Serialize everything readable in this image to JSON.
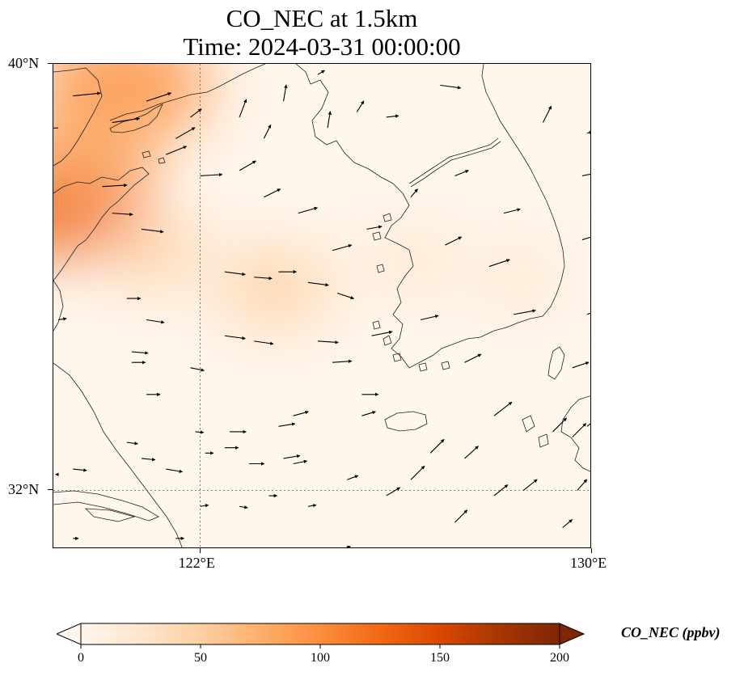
{
  "title": {
    "line1": "CO_NEC at 1.5km",
    "line2": "Time: 2024-03-31 00:00:00"
  },
  "map": {
    "lon_range": [
      119,
      130
    ],
    "lat_range": [
      30.9,
      40
    ],
    "lat_ticks": [
      {
        "value": 40,
        "label": "40°N"
      },
      {
        "value": 32,
        "label": "32°N"
      }
    ],
    "lon_ticks": [
      {
        "value": 122,
        "label": "122°E"
      },
      {
        "value": 130,
        "label": "130°E"
      }
    ],
    "gridlines": [
      {
        "axis": "lon",
        "value": 122
      },
      {
        "axis": "lat",
        "value": 32
      }
    ],
    "field_unit": "ppbv",
    "plumes": [
      {
        "lon": 120.4,
        "lat": 39.6,
        "value": 110
      },
      {
        "lon": 119.1,
        "lat": 37.4,
        "value": 115
      },
      {
        "lon": 119.8,
        "lat": 38.5,
        "value": 75
      },
      {
        "lon": 123.5,
        "lat": 35.8,
        "value": 55
      },
      {
        "lon": 121.0,
        "lat": 36.5,
        "value": 40
      },
      {
        "lon": 126.3,
        "lat": 36.3,
        "value": 35
      },
      {
        "lon": 128.5,
        "lat": 36.0,
        "value": 25
      }
    ]
  },
  "colorbar": {
    "label": "CO_NEC (ppbv)",
    "min": 0,
    "max": 200,
    "ticks": [
      0,
      50,
      100,
      150,
      200
    ],
    "extend": "both",
    "colormap": [
      "#fff5eb",
      "#fee6ce",
      "#fdd0a2",
      "#fdae6b",
      "#fd8d3c",
      "#f16913",
      "#d94801",
      "#a63603",
      "#7f2704"
    ]
  },
  "wind_vectors": [
    {
      "lon": 119.1,
      "lat": 38.8,
      "u": -1,
      "v": -0.05
    },
    {
      "lon": 119.4,
      "lat": 39.4,
      "u": 2,
      "v": 0.2
    },
    {
      "lon": 120.2,
      "lat": 38.9,
      "u": 2,
      "v": 0.3
    },
    {
      "lon": 120.9,
      "lat": 39.3,
      "u": 1.8,
      "v": 0.6
    },
    {
      "lon": 121.8,
      "lat": 39.0,
      "u": 0.8,
      "v": 0.6
    },
    {
      "lon": 120.0,
      "lat": 37.7,
      "u": 1.8,
      "v": 0.1
    },
    {
      "lon": 121.5,
      "lat": 38.6,
      "u": 1.4,
      "v": 0.8
    },
    {
      "lon": 122.0,
      "lat": 37.9,
      "u": 1.6,
      "v": 0.1
    },
    {
      "lon": 120.2,
      "lat": 37.2,
      "u": 1.5,
      "v": -0.1
    },
    {
      "lon": 120.8,
      "lat": 36.9,
      "u": 1.6,
      "v": -0.2
    },
    {
      "lon": 121.3,
      "lat": 38.3,
      "u": 1.5,
      "v": 0.6
    },
    {
      "lon": 122.8,
      "lat": 38.0,
      "u": 1.2,
      "v": 0.7
    },
    {
      "lon": 123.3,
      "lat": 37.5,
      "u": 1.2,
      "v": 0.6
    },
    {
      "lon": 124.0,
      "lat": 37.2,
      "u": 1.4,
      "v": 0.4
    },
    {
      "lon": 124.7,
      "lat": 36.5,
      "u": 1.4,
      "v": 0.4
    },
    {
      "lon": 125.4,
      "lat": 36.9,
      "u": 1.1,
      "v": 0.2
    },
    {
      "lon": 122.5,
      "lat": 36.1,
      "u": 1.5,
      "v": -0.2
    },
    {
      "lon": 123.1,
      "lat": 36.0,
      "u": 1.3,
      "v": -0.1
    },
    {
      "lon": 123.6,
      "lat": 36.1,
      "u": 1.3,
      "v": 0.0
    },
    {
      "lon": 124.2,
      "lat": 35.9,
      "u": 1.5,
      "v": -0.2
    },
    {
      "lon": 124.8,
      "lat": 35.7,
      "u": 1.2,
      "v": -0.4
    },
    {
      "lon": 123.7,
      "lat": 39.3,
      "u": 0.2,
      "v": 1.2
    },
    {
      "lon": 122.8,
      "lat": 39.0,
      "u": 0.5,
      "v": 1.3
    },
    {
      "lon": 123.3,
      "lat": 38.6,
      "u": 0.5,
      "v": 1.0
    },
    {
      "lon": 124.6,
      "lat": 38.8,
      "u": 0.2,
      "v": 1.2
    },
    {
      "lon": 124.4,
      "lat": 39.8,
      "u": 0.5,
      "v": 0.3
    },
    {
      "lon": 125.2,
      "lat": 39.1,
      "u": 0.5,
      "v": 0.8
    },
    {
      "lon": 126.9,
      "lat": 39.6,
      "u": 1.5,
      "v": -0.2
    },
    {
      "lon": 125.8,
      "lat": 39.0,
      "u": 0.9,
      "v": 0.1
    },
    {
      "lon": 126.3,
      "lat": 37.5,
      "u": 0.5,
      "v": 0.6
    },
    {
      "lon": 127.0,
      "lat": 36.6,
      "u": 1.2,
      "v": 0.6
    },
    {
      "lon": 127.2,
      "lat": 37.9,
      "u": 1.0,
      "v": 0.4
    },
    {
      "lon": 128.2,
      "lat": 37.2,
      "u": 1.2,
      "v": 0.3
    },
    {
      "lon": 129.0,
      "lat": 38.9,
      "u": 0.6,
      "v": 1.2
    },
    {
      "lon": 129.9,
      "lat": 38.7,
      "u": 0.4,
      "v": 0.1
    },
    {
      "lon": 129.8,
      "lat": 37.9,
      "u": 1.0,
      "v": 0.2
    },
    {
      "lon": 129.8,
      "lat": 36.7,
      "u": 1.3,
      "v": 0.4
    },
    {
      "lon": 127.9,
      "lat": 36.2,
      "u": 1.5,
      "v": 0.5
    },
    {
      "lon": 128.4,
      "lat": 35.3,
      "u": 1.6,
      "v": 0.3
    },
    {
      "lon": 129.9,
      "lat": 35.3,
      "u": 1.5,
      "v": 0.6
    },
    {
      "lon": 129.6,
      "lat": 34.3,
      "u": 1.2,
      "v": 0.4
    },
    {
      "lon": 130.0,
      "lat": 35.1,
      "u": 1.0,
      "v": 0.6
    },
    {
      "lon": 119.1,
      "lat": 35.2,
      "u": 0.6,
      "v": 0.1
    },
    {
      "lon": 120.5,
      "lat": 35.6,
      "u": 1.0,
      "v": 0.0
    },
    {
      "lon": 120.9,
      "lat": 35.2,
      "u": 1.3,
      "v": -0.2
    },
    {
      "lon": 121.8,
      "lat": 34.3,
      "u": 1.0,
      "v": -0.2
    },
    {
      "lon": 120.6,
      "lat": 34.6,
      "u": 1.2,
      "v": -0.1
    },
    {
      "lon": 122.5,
      "lat": 34.9,
      "u": 1.5,
      "v": -0.2
    },
    {
      "lon": 123.1,
      "lat": 34.8,
      "u": 1.4,
      "v": -0.2
    },
    {
      "lon": 124.4,
      "lat": 34.8,
      "u": 1.5,
      "v": -0.1
    },
    {
      "lon": 125.5,
      "lat": 34.9,
      "u": 1.5,
      "v": 0.3
    },
    {
      "lon": 126.5,
      "lat": 35.2,
      "u": 1.3,
      "v": 0.3
    },
    {
      "lon": 124.7,
      "lat": 34.4,
      "u": 1.4,
      "v": 0.1
    },
    {
      "lon": 125.3,
      "lat": 33.8,
      "u": 1.2,
      "v": 0.0
    },
    {
      "lon": 127.4,
      "lat": 34.4,
      "u": 1.2,
      "v": 0.6
    },
    {
      "lon": 128.0,
      "lat": 33.4,
      "u": 1.3,
      "v": 1.0
    },
    {
      "lon": 129.2,
      "lat": 33.1,
      "u": 1.0,
      "v": 1.0
    },
    {
      "lon": 129.9,
      "lat": 33.2,
      "u": 1.0,
      "v": 0.8
    },
    {
      "lon": 120.6,
      "lat": 34.4,
      "u": 1.0,
      "v": 0.0
    },
    {
      "lon": 120.9,
      "lat": 33.8,
      "u": 1.0,
      "v": 0.0
    },
    {
      "lon": 121.9,
      "lat": 33.1,
      "u": 0.6,
      "v": -0.05
    },
    {
      "lon": 122.6,
      "lat": 33.1,
      "u": 1.2,
      "v": 0.0
    },
    {
      "lon": 123.6,
      "lat": 33.2,
      "u": 1.2,
      "v": 0.2
    },
    {
      "lon": 123.9,
      "lat": 33.4,
      "u": 1.1,
      "v": 0.3
    },
    {
      "lon": 122.5,
      "lat": 32.8,
      "u": 1.0,
      "v": 0.0
    },
    {
      "lon": 123.7,
      "lat": 32.6,
      "u": 1.2,
      "v": 0.2
    },
    {
      "lon": 119.4,
      "lat": 32.4,
      "u": 1.0,
      "v": -0.1
    },
    {
      "lon": 119.1,
      "lat": 32.3,
      "u": -0.2,
      "v": 0.0
    },
    {
      "lon": 120.5,
      "lat": 32.9,
      "u": 0.8,
      "v": -0.1
    },
    {
      "lon": 120.8,
      "lat": 32.6,
      "u": 1.0,
      "v": -0.1
    },
    {
      "lon": 121.3,
      "lat": 32.4,
      "u": 1.2,
      "v": -0.2
    },
    {
      "lon": 122.1,
      "lat": 32.7,
      "u": 0.6,
      "v": 0.0
    },
    {
      "lon": 123.0,
      "lat": 32.5,
      "u": 1.1,
      "v": 0.0
    },
    {
      "lon": 123.9,
      "lat": 32.5,
      "u": 1.0,
      "v": 0.2
    },
    {
      "lon": 125.0,
      "lat": 32.2,
      "u": 0.8,
      "v": 0.3
    },
    {
      "lon": 125.8,
      "lat": 31.9,
      "u": 1.0,
      "v": 0.6
    },
    {
      "lon": 126.3,
      "lat": 32.2,
      "u": 1.0,
      "v": 1.0
    },
    {
      "lon": 126.7,
      "lat": 32.7,
      "u": 1.0,
      "v": 1.0
    },
    {
      "lon": 127.4,
      "lat": 32.6,
      "u": 1.0,
      "v": 0.9
    },
    {
      "lon": 128.0,
      "lat": 31.9,
      "u": 1.0,
      "v": 0.8
    },
    {
      "lon": 128.6,
      "lat": 32.0,
      "u": 1.0,
      "v": 0.8
    },
    {
      "lon": 129.6,
      "lat": 33.0,
      "u": 1.0,
      "v": 1.0
    },
    {
      "lon": 129.7,
      "lat": 32.0,
      "u": 0.7,
      "v": 0.8
    },
    {
      "lon": 129.4,
      "lat": 31.3,
      "u": 0.7,
      "v": 0.6
    },
    {
      "lon": 127.2,
      "lat": 31.4,
      "u": 0.9,
      "v": 0.9
    },
    {
      "lon": 122.0,
      "lat": 31.7,
      "u": 0.6,
      "v": 0.1
    },
    {
      "lon": 121.5,
      "lat": 31.1,
      "u": 0.6,
      "v": 0.0
    },
    {
      "lon": 122.8,
      "lat": 31.7,
      "u": 0.6,
      "v": -0.1
    },
    {
      "lon": 123.4,
      "lat": 31.9,
      "u": 0.6,
      "v": 0.0
    },
    {
      "lon": 124.2,
      "lat": 31.7,
      "u": 0.6,
      "v": 0.1
    },
    {
      "lon": 124.9,
      "lat": 30.9,
      "u": 0.6,
      "v": 0.2
    },
    {
      "lon": 119.4,
      "lat": 31.1,
      "u": 0.4,
      "v": 0.0
    },
    {
      "lon": 125.3,
      "lat": 33.4,
      "u": 1.0,
      "v": 0.3
    }
  ]
}
